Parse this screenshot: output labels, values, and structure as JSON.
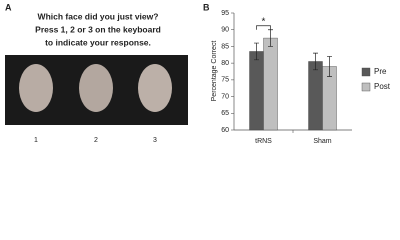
{
  "panel_a": {
    "label": "A",
    "lines": [
      "Which face did you just view?",
      "Press 1, 2 or 3 on the keyboard",
      "to indicate your response."
    ],
    "faces": [
      "1",
      "2",
      "3"
    ]
  },
  "panel_b_label": "B",
  "chart_data": {
    "type": "bar",
    "ylabel": "Percentage Correct",
    "categories": [
      "tRNS",
      "Sham"
    ],
    "series": [
      {
        "name": "Pre",
        "color": "#595959",
        "values": [
          83.5,
          80.5
        ],
        "errors": [
          2.5,
          2.5
        ]
      },
      {
        "name": "Post",
        "color": "#bfbfbf",
        "values": [
          87.5,
          79
        ],
        "errors": [
          2.5,
          3
        ]
      }
    ],
    "ylim": [
      60,
      95
    ],
    "yticks": [
      60,
      65,
      70,
      75,
      80,
      85,
      90,
      95
    ],
    "annotation": "*",
    "legend": "right"
  }
}
